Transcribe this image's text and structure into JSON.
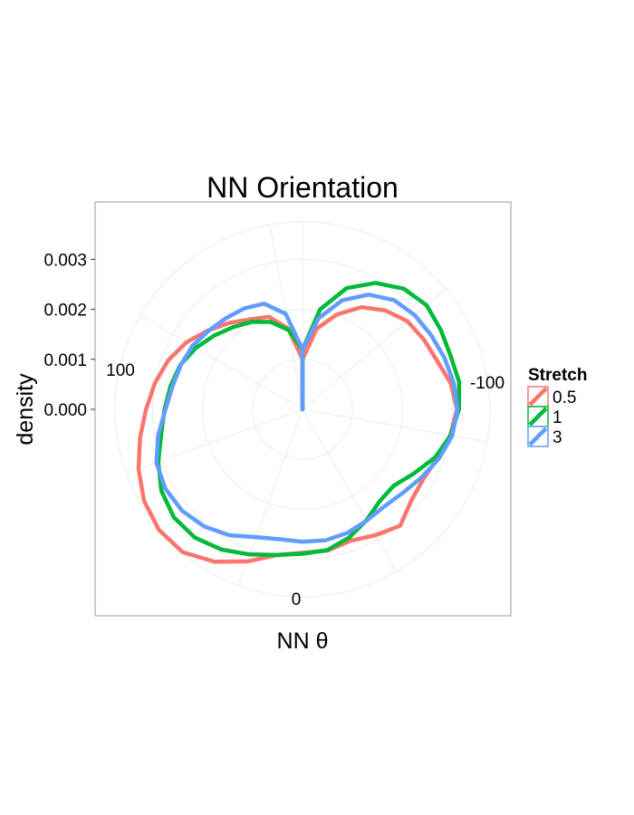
{
  "chart_data": {
    "type": "line",
    "coord": "polar",
    "title": "NN Orientation",
    "xlabel": "NN θ",
    "ylabel": "density",
    "r_ticks": [
      "0.000",
      "0.001",
      "0.002",
      "0.003"
    ],
    "r_tick_values": [
      0,
      0.001,
      0.002,
      0.003
    ],
    "theta_ticks": [
      {
        "label": "0",
        "angle_deg": 0
      },
      {
        "label": "100",
        "angle_deg": 100
      },
      {
        "label": "-100",
        "angle_deg": -100
      }
    ],
    "rlim": [
      0,
      0.00375
    ],
    "grid": true,
    "legend": {
      "title": "Stretch",
      "position": "right",
      "entries": [
        "0.5",
        "1",
        "3"
      ]
    },
    "series": [
      {
        "name": "0.5",
        "color": "#F8766D",
        "theta_deg": [
          -180,
          -170,
          -160,
          -150,
          -140,
          -130,
          -120,
          -110,
          -100,
          -90,
          -80,
          -70,
          -60,
          -50,
          -40,
          -30,
          -20,
          -10,
          0,
          10,
          20,
          30,
          40,
          50,
          60,
          70,
          80,
          90,
          100,
          110,
          120,
          130,
          140,
          150,
          160,
          170,
          180
        ],
        "density": [
          0.001,
          0.00164,
          0.00202,
          0.00236,
          0.00258,
          0.00274,
          0.0028,
          0.00286,
          0.00301,
          0.00309,
          0.003,
          0.00287,
          0.00279,
          0.00284,
          0.00304,
          0.00291,
          0.0028,
          0.00287,
          0.00287,
          0.00296,
          0.00324,
          0.00352,
          0.00373,
          0.00375,
          0.00366,
          0.00349,
          0.0033,
          0.00313,
          0.003,
          0.00286,
          0.00268,
          0.00246,
          0.00226,
          0.00208,
          0.00197,
          0.00164,
          0.001
        ]
      },
      {
        "name": "1",
        "color": "#00BA38",
        "theta_deg": [
          -180,
          -170,
          -160,
          -150,
          -140,
          -130,
          -120,
          -110,
          -100,
          -90,
          -80,
          -70,
          -60,
          -50,
          -40,
          -30,
          -20,
          -10,
          0,
          10,
          20,
          30,
          40,
          50,
          60,
          70,
          80,
          90,
          100,
          110,
          120,
          130,
          140,
          150,
          160,
          170,
          180
        ],
        "density": [
          0.0012,
          0.00203,
          0.00258,
          0.00292,
          0.00315,
          0.00324,
          0.00319,
          0.00315,
          0.00318,
          0.00313,
          0.00301,
          0.00282,
          0.00257,
          0.00238,
          0.0024,
          0.00256,
          0.00273,
          0.00286,
          0.00289,
          0.00296,
          0.00309,
          0.00324,
          0.00335,
          0.00336,
          0.00326,
          0.00307,
          0.00287,
          0.00276,
          0.00268,
          0.0026,
          0.00246,
          0.0023,
          0.00215,
          0.00202,
          0.00186,
          0.00161,
          0.0012
        ]
      },
      {
        "name": "3",
        "color": "#619CFF",
        "theta_deg": [
          -180,
          -170,
          -160,
          -150,
          -140,
          -130,
          -120,
          -110,
          -100,
          -90,
          -80,
          -70,
          -60,
          -50,
          -40,
          -30,
          -20,
          -10,
          0,
          10,
          20,
          30,
          40,
          50,
          60,
          70,
          80,
          90,
          100,
          110,
          120,
          130,
          140,
          150,
          160,
          170,
          180
        ],
        "density": [
          0.0012,
          0.00185,
          0.00232,
          0.00265,
          0.00285,
          0.00293,
          0.00297,
          0.00302,
          0.00307,
          0.0031,
          0.00304,
          0.0029,
          0.00274,
          0.00261,
          0.00254,
          0.00257,
          0.00263,
          0.00266,
          0.00265,
          0.00264,
          0.00272,
          0.00291,
          0.00306,
          0.00315,
          0.00317,
          0.00311,
          0.00293,
          0.00274,
          0.00264,
          0.00259,
          0.00254,
          0.00245,
          0.00238,
          0.00233,
          0.00225,
          0.00194,
          0.0012
        ]
      }
    ]
  }
}
